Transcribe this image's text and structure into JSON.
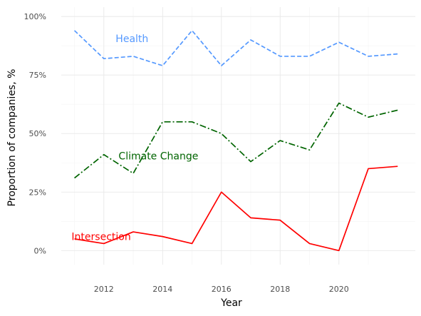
{
  "chart_data": {
    "type": "line",
    "xlabel": "Year",
    "ylabel": "Proportion of companies, %",
    "x": [
      2011,
      2012,
      2013,
      2014,
      2015,
      2016,
      2017,
      2018,
      2019,
      2020,
      2021,
      2022
    ],
    "xlim": [
      2010.55,
      2022.6
    ],
    "ylim": [
      -6,
      104
    ],
    "x_ticks": [
      2012,
      2014,
      2016,
      2018,
      2020
    ],
    "x_tick_labels": [
      "2012",
      "2014",
      "2016",
      "2018",
      "2020"
    ],
    "y_ticks": [
      0,
      25,
      50,
      75,
      100
    ],
    "y_tick_labels": [
      "0%",
      "25%",
      "50%",
      "75%",
      "100%"
    ],
    "grid": true,
    "legend": "none",
    "series": [
      {
        "name": "Health",
        "color": "#5599ff",
        "dash": "dashed",
        "values": [
          94,
          82,
          83,
          79,
          94,
          79,
          90,
          83,
          83,
          89,
          83,
          84
        ],
        "label_anchor": [
          2012.4,
          89
        ]
      },
      {
        "name": "Climate Change",
        "color": "#006400",
        "dash": "dashdot",
        "values": [
          31,
          41,
          33,
          55,
          55,
          50,
          38,
          47,
          43,
          63,
          57,
          60
        ],
        "label_anchor": [
          2012.5,
          39
        ]
      },
      {
        "name": "Intersection",
        "color": "#ff0000",
        "dash": "solid",
        "values": [
          5,
          3,
          8,
          6,
          3,
          25,
          14,
          13,
          3,
          0,
          35,
          36
        ],
        "label_anchor": [
          2010.9,
          4.5
        ]
      }
    ]
  }
}
